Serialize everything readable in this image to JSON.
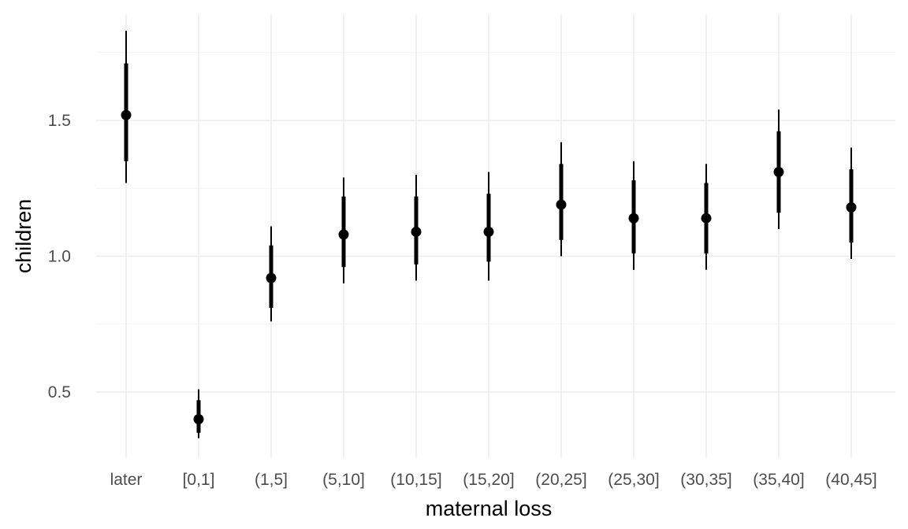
{
  "chart_data": {
    "type": "pointrange",
    "xlabel": "maternal loss",
    "ylabel": "children",
    "categories": [
      "later",
      "[0,1]",
      "(1,5]",
      "(5,10]",
      "(10,15]",
      "(15,20]",
      "(20,25]",
      "(25,30]",
      "(30,35]",
      "(35,40]",
      "(40,45]"
    ],
    "estimate": [
      1.52,
      0.4,
      0.92,
      1.08,
      1.09,
      1.09,
      1.19,
      1.14,
      1.14,
      1.31,
      1.18
    ],
    "inner_interval": [
      [
        1.35,
        1.71
      ],
      [
        0.35,
        0.47
      ],
      [
        0.81,
        1.04
      ],
      [
        0.96,
        1.22
      ],
      [
        0.97,
        1.22
      ],
      [
        0.98,
        1.23
      ],
      [
        1.06,
        1.34
      ],
      [
        1.01,
        1.28
      ],
      [
        1.01,
        1.27
      ],
      [
        1.16,
        1.46
      ],
      [
        1.05,
        1.32
      ]
    ],
    "outer_interval": [
      [
        1.27,
        1.83
      ],
      [
        0.33,
        0.51
      ],
      [
        0.76,
        1.11
      ],
      [
        0.9,
        1.29
      ],
      [
        0.91,
        1.3
      ],
      [
        0.91,
        1.31
      ],
      [
        1.0,
        1.42
      ],
      [
        0.95,
        1.35
      ],
      [
        0.95,
        1.34
      ],
      [
        1.1,
        1.54
      ],
      [
        0.99,
        1.4
      ]
    ],
    "yticks": [
      0.5,
      1.0,
      1.5
    ],
    "ytick_labels": [
      "0.5",
      "1.0",
      "1.5"
    ],
    "ylim": [
      0.27,
      1.88
    ],
    "grid": true,
    "legend": "none",
    "colors": {
      "marks": "#000000",
      "grid": "#ebebeb",
      "tick_text": "#4d4d4d"
    }
  }
}
